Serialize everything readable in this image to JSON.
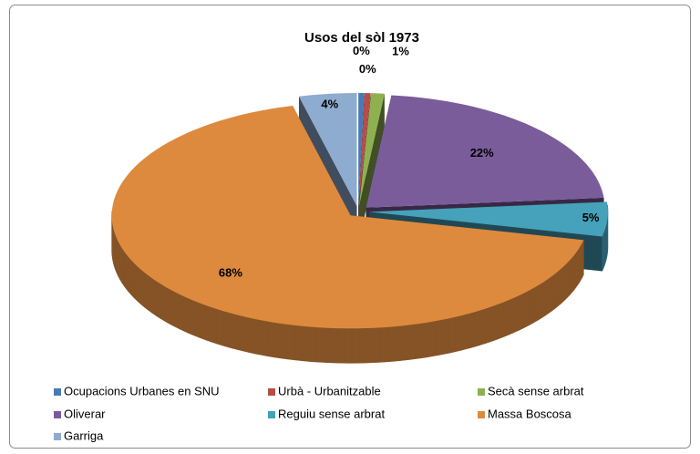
{
  "chart_data": {
    "type": "pie3d",
    "title": "Usos del sòl 1973",
    "categories": [
      "Ocupacions Urbanes en SNU",
      "Urbà - Urbanitzable",
      "Secà sense arbrat",
      "Oliverar",
      "Reguiu sense arbrat",
      "Massa Boscosa",
      "Garriga"
    ],
    "values": [
      0.4,
      0.4,
      0.9,
      21.9,
      4.9,
      67.6,
      3.9
    ],
    "value_labels": [
      "0%",
      "0%",
      "1%",
      "22%",
      "5%",
      "68%",
      "4%"
    ],
    "colors": [
      "#4a7ab5",
      "#b94c49",
      "#8fb050",
      "#7a5c9b",
      "#46a1ba",
      "#dd8a3e",
      "#8eabd0"
    ],
    "legend": "bottom"
  }
}
